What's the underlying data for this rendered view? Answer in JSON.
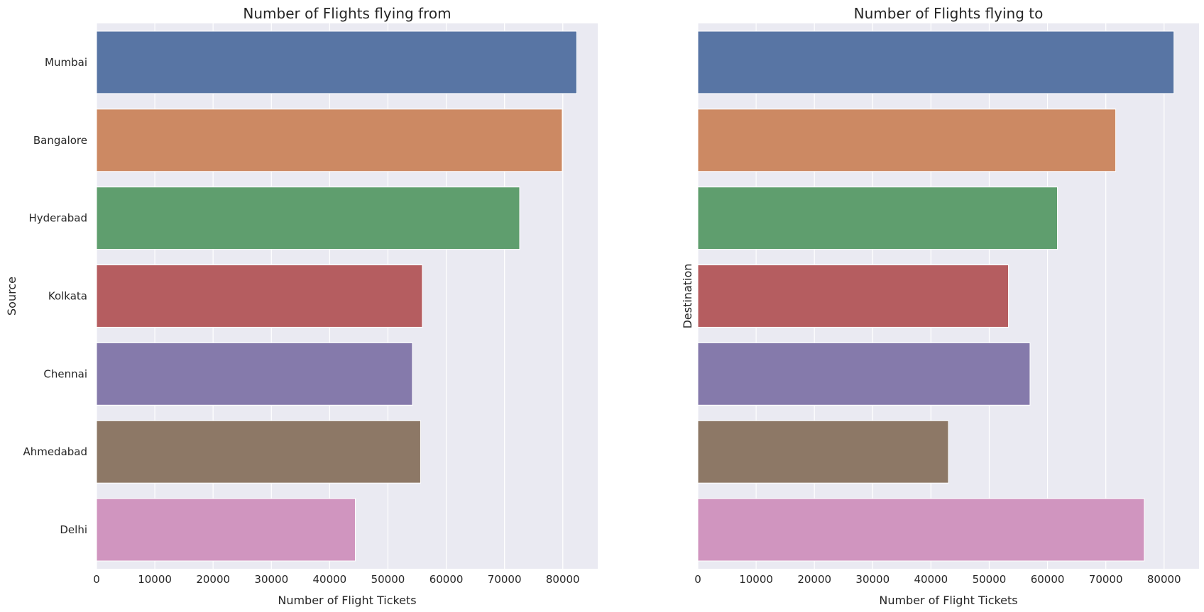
{
  "chart_data": [
    {
      "type": "bar",
      "orientation": "horizontal",
      "title": "Number of Flights flying from",
      "xlabel": "Number of Flight Tickets",
      "ylabel": "Source",
      "categories": [
        "Mumbai",
        "Bangalore",
        "Hyderabad",
        "Kolkata",
        "Chennai",
        "Ahmedabad",
        "Delhi"
      ],
      "values": [
        82400,
        79900,
        72600,
        55900,
        54200,
        55600,
        44400
      ],
      "xlim": [
        0,
        86000
      ],
      "xticks": [
        "0",
        "10000",
        "20000",
        "30000",
        "40000",
        "50000",
        "60000",
        "70000",
        "80000"
      ],
      "grid": true,
      "colors": [
        "#5875a4",
        "#cc8963",
        "#5f9e6e",
        "#b55d60",
        "#857aab",
        "#8d7866",
        "#d095bf"
      ]
    },
    {
      "type": "bar",
      "orientation": "horizontal",
      "title": "Number of Flights flying to",
      "xlabel": "Number of Flight Tickets",
      "ylabel": "Destination",
      "categories": [
        "Mumbai",
        "Bangalore",
        "Hyderabad",
        "Kolkata",
        "Chennai",
        "Ahmedabad",
        "Delhi"
      ],
      "values": [
        81700,
        71700,
        61700,
        53300,
        57000,
        43000,
        76600
      ],
      "xlim": [
        0,
        86000
      ],
      "xticks": [
        "0",
        "10000",
        "20000",
        "30000",
        "40000",
        "50000",
        "60000",
        "70000",
        "80000"
      ],
      "grid": true,
      "colors": [
        "#5875a4",
        "#cc8963",
        "#5f9e6e",
        "#b55d60",
        "#857aab",
        "#8d7866",
        "#d095bf"
      ]
    }
  ]
}
